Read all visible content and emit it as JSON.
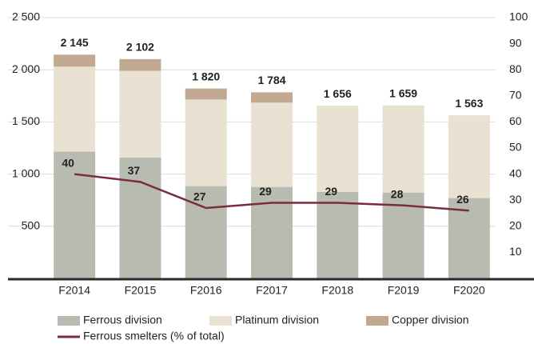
{
  "chart_data": {
    "type": "bar",
    "categories": [
      "F2014",
      "F2015",
      "F2016",
      "F2017",
      "F2018",
      "F2019",
      "F2020"
    ],
    "stacked": true,
    "series": [
      {
        "name": "Ferrous division",
        "color": "#b8bcb0",
        "values": [
          1215,
          1160,
          885,
          877,
          830,
          823,
          770
        ]
      },
      {
        "name": "Platinum division",
        "color": "#e9e1d1",
        "values": [
          815,
          830,
          830,
          808,
          826,
          836,
          793
        ]
      },
      {
        "name": "Copper division",
        "color": "#c1a890",
        "values": [
          115,
          112,
          105,
          99,
          0,
          0,
          0
        ]
      },
      {
        "name": "Ferrous smelters (% of total)",
        "color": "#7b2c3b",
        "type": "line",
        "axis": "y2",
        "values": [
          40,
          37,
          27,
          29,
          29,
          28,
          26
        ]
      }
    ],
    "totals": {
      "values": [
        2145,
        2102,
        1820,
        1784,
        1656,
        1659,
        1563
      ],
      "value_labels": [
        "2 145",
        "2 102",
        "1 820",
        "1 784",
        "1 656",
        "1 659",
        "1 563"
      ]
    },
    "ylim": [
      0,
      2500
    ],
    "yticks": [
      {
        "value": 500,
        "label": "500"
      },
      {
        "value": 1000,
        "label": "1 000"
      },
      {
        "value": 1500,
        "label": "1 500"
      },
      {
        "value": 2000,
        "label": "2 000"
      },
      {
        "value": 2500,
        "label": "2 500"
      }
    ],
    "y2lim": [
      0,
      100
    ],
    "y2ticks": [
      10,
      20,
      30,
      40,
      50,
      60,
      70,
      80,
      90,
      100
    ],
    "grid": true
  }
}
